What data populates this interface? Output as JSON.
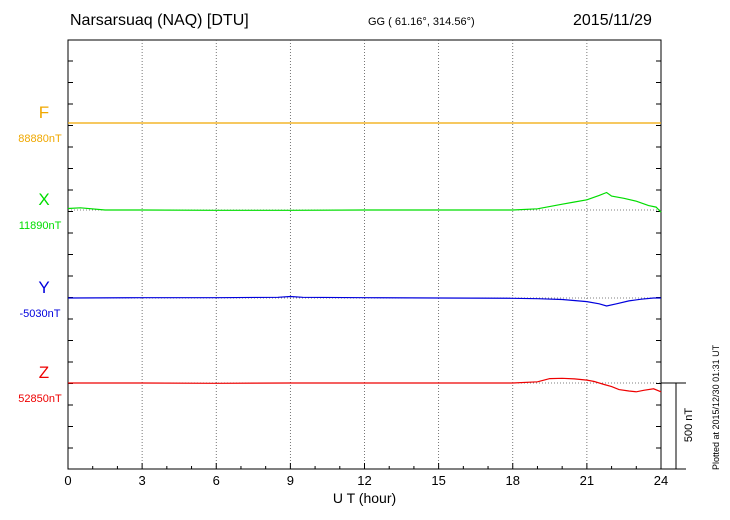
{
  "header": {
    "title": "Narsarsuaq (NAQ)  [DTU]",
    "coords": "GG ( 61.16°, 314.56°)",
    "date": "2015/11/29",
    "plotted": "Plotted at 2015/12/30 01:31  UT"
  },
  "chart_data": {
    "type": "line",
    "xlabel": "U T (hour)",
    "xlim": [
      0,
      24
    ],
    "x_ticks": [
      0,
      3,
      6,
      9,
      12,
      15,
      18,
      21,
      24
    ],
    "x_tick_labels": [
      "0",
      "3",
      "6",
      "9",
      "12",
      "15",
      "18",
      "21",
      "24"
    ],
    "scale_bar": {
      "label": "500 nT",
      "value_nT": 500
    },
    "y_units_per_trace_nT": 500,
    "series": [
      {
        "name": "F",
        "baseline_label": "88880nT",
        "baseline_nT": 88880,
        "color": "#f0a800",
        "x": [
          0,
          24
        ],
        "y": [
          0,
          0
        ]
      },
      {
        "name": "X",
        "baseline_label": "11890nT",
        "baseline_nT": 11890,
        "color": "#00dd00",
        "x": [
          0,
          0.5,
          1.5,
          3,
          6,
          9,
          12,
          15,
          18,
          19,
          20,
          20.5,
          21,
          21.5,
          21.8,
          22,
          22.5,
          23,
          23.5,
          23.8,
          24
        ],
        "y": [
          10,
          15,
          0,
          0,
          -2,
          -2,
          0,
          0,
          0,
          8,
          40,
          55,
          70,
          100,
          120,
          95,
          80,
          60,
          30,
          20,
          -15
        ]
      },
      {
        "name": "Y",
        "baseline_label": "-5030nT",
        "baseline_nT": -5030,
        "color": "#0000dd",
        "x": [
          0,
          3,
          6,
          8.5,
          9,
          9.5,
          12,
          15,
          18,
          19,
          20,
          21,
          21.5,
          21.8,
          22.2,
          22.7,
          23.2,
          23.7,
          24
        ],
        "y": [
          0,
          2,
          2,
          5,
          10,
          5,
          2,
          0,
          -2,
          -5,
          -10,
          -25,
          -40,
          -55,
          -40,
          -20,
          -8,
          0,
          0
        ]
      },
      {
        "name": "Z",
        "baseline_label": "52850nT",
        "baseline_nT": 52850,
        "color": "#ee0000",
        "x": [
          0,
          3,
          6,
          9,
          12,
          15,
          18,
          19,
          19.5,
          20,
          20.5,
          21,
          21.3,
          21.7,
          22,
          22.3,
          22.7,
          23,
          23.3,
          23.7,
          24
        ],
        "y": [
          0,
          0,
          -2,
          0,
          0,
          0,
          0,
          8,
          30,
          32,
          28,
          20,
          10,
          -10,
          -25,
          -45,
          -55,
          -60,
          -50,
          -40,
          -60
        ]
      }
    ]
  }
}
